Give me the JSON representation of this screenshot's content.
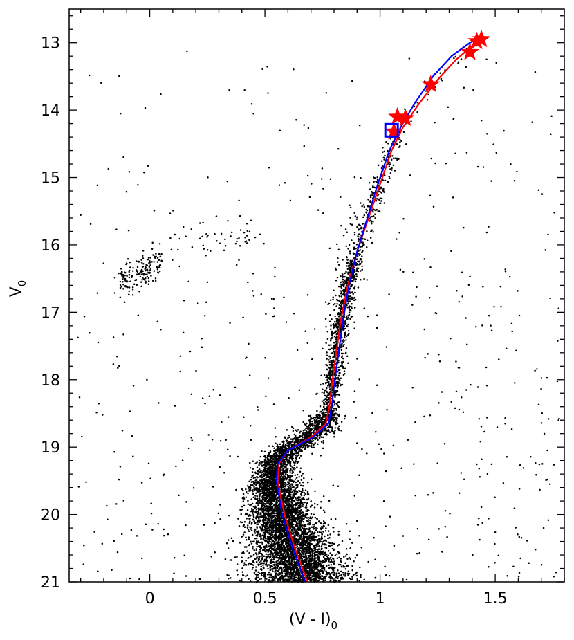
{
  "chart_data": {
    "type": "scatter",
    "xlabel": "(V - I)",
    "xlabel_subscript": "0",
    "ylabel": "V",
    "ylabel_subscript": "0",
    "xlim": [
      -0.35,
      1.8
    ],
    "ylim": [
      21,
      12.5
    ],
    "y_inverted": true,
    "grid": false,
    "legend": "none",
    "x_ticks": [
      0,
      0.5,
      1,
      1.5
    ],
    "x_tick_labels": [
      "0",
      "0.5",
      "1",
      "1.5"
    ],
    "y_ticks": [
      13,
      14,
      15,
      16,
      17,
      18,
      19,
      20,
      21
    ],
    "y_tick_labels": [
      "13",
      "14",
      "15",
      "16",
      "17",
      "18",
      "19",
      "20",
      "21"
    ],
    "colors": {
      "points": "#000000",
      "red_curve": "#ff0000",
      "blue_curve": "#0000ff",
      "stars": "#ff0000",
      "square": "#0000ff"
    },
    "features": [
      {
        "name": "main-sequence",
        "x": 0.6,
        "y_range": [
          19.1,
          21
        ],
        "approx_count": "several thousand"
      },
      {
        "name": "subgiant-branch",
        "x_range": [
          0.6,
          0.78
        ],
        "y_range": [
          18.6,
          19.2
        ]
      },
      {
        "name": "red-giant-branch",
        "x_range": [
          0.78,
          1.43
        ],
        "y_range": [
          12.95,
          18.6
        ]
      },
      {
        "name": "horizontal-branch",
        "x_range": [
          -0.15,
          0.45
        ],
        "y_range": [
          15.6,
          17.2
        ]
      }
    ],
    "series": [
      {
        "name": "",
        "type": "line",
        "color": "#ff0000",
        "x": [
          0.685,
          0.63,
          0.585,
          0.555,
          0.56,
          0.6,
          0.7,
          0.765,
          0.78,
          0.79,
          0.81,
          0.83,
          0.86,
          0.9,
          0.95,
          1.0,
          1.05,
          1.1,
          1.17,
          1.25,
          1.33,
          1.4,
          1.45
        ],
        "y": [
          21.0,
          20.5,
          20.0,
          19.5,
          19.25,
          19.05,
          18.85,
          18.65,
          18.4,
          18.1,
          17.6,
          17.1,
          16.6,
          16.1,
          15.6,
          15.1,
          14.6,
          14.25,
          13.9,
          13.55,
          13.25,
          13.05,
          12.95
        ]
      },
      {
        "name": "",
        "type": "line",
        "color": "#0000ff",
        "x": [
          0.675,
          0.62,
          0.575,
          0.55,
          0.555,
          0.6,
          0.71,
          0.775,
          0.79,
          0.8,
          0.82,
          0.84,
          0.865,
          0.9,
          0.945,
          0.99,
          1.04,
          1.09,
          1.15,
          1.23,
          1.31,
          1.39,
          1.45
        ],
        "y": [
          21.0,
          20.5,
          20.0,
          19.5,
          19.25,
          19.05,
          18.85,
          18.65,
          18.4,
          18.1,
          17.6,
          17.1,
          16.6,
          16.1,
          15.6,
          15.1,
          14.6,
          14.25,
          13.9,
          13.5,
          13.2,
          13.0,
          12.9
        ]
      },
      {
        "name": "",
        "type": "marker",
        "marker": "star",
        "color": "#ff0000",
        "points": [
          [
            1.06,
            14.32
          ],
          [
            1.075,
            14.1
          ],
          [
            1.11,
            14.12
          ],
          [
            1.22,
            13.62
          ],
          [
            1.39,
            13.14
          ],
          [
            1.42,
            12.98
          ],
          [
            1.44,
            12.95
          ]
        ]
      },
      {
        "name": "",
        "type": "marker",
        "marker": "square",
        "color": "#0000ff",
        "points": [
          [
            1.05,
            14.3
          ]
        ]
      }
    ]
  }
}
